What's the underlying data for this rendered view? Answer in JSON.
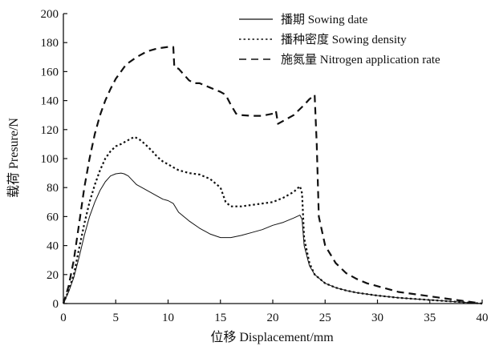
{
  "chart_data": {
    "type": "line",
    "xlabel": "位移 Displacement/mm",
    "ylabel": "载荷 Presure/N",
    "xlim": [
      0,
      40
    ],
    "ylim": [
      0,
      200
    ],
    "x_ticks": [
      0,
      5,
      10,
      15,
      20,
      25,
      30,
      35,
      40
    ],
    "y_ticks": [
      0,
      20,
      40,
      60,
      80,
      100,
      120,
      140,
      160,
      180,
      200
    ],
    "grid": false,
    "legend_position": "top-right",
    "series": [
      {
        "name": "播期 Sowing date",
        "line_style": "solid",
        "stroke_width": 1,
        "color": "#111111",
        "x": [
          0,
          0.5,
          1,
          1.5,
          2,
          2.5,
          3,
          3.5,
          4,
          4.5,
          5,
          5.5,
          5.8,
          6.2,
          6.6,
          7,
          7.5,
          8,
          8.5,
          9,
          9.5,
          10,
          10.5,
          11,
          11.5,
          12,
          13,
          14,
          15,
          16,
          17,
          18,
          19,
          20,
          21,
          22,
          22.6,
          22.8,
          23,
          23.5,
          24,
          25,
          26,
          27,
          28,
          29,
          30,
          32,
          34,
          36,
          38,
          40
        ],
        "values": [
          0,
          8,
          18,
          32,
          47,
          60,
          70,
          78,
          84,
          88,
          89.5,
          90,
          89.5,
          88,
          85,
          82,
          80,
          78,
          76,
          74,
          72,
          71,
          69,
          63,
          60,
          57,
          52,
          48,
          45.5,
          45.5,
          47,
          49,
          51,
          54,
          56,
          59,
          61,
          58,
          40,
          26,
          20,
          14,
          11,
          9,
          7.5,
          6.5,
          5.5,
          4,
          3,
          2,
          1,
          0
        ]
      },
      {
        "name": "播种密度 Sowing density",
        "line_style": "dotted",
        "stroke_width": 2.2,
        "color": "#111111",
        "x": [
          0,
          0.5,
          1,
          1.5,
          2,
          2.5,
          3,
          3.5,
          4,
          4.5,
          5,
          5.5,
          6,
          6.5,
          6.8,
          7.3,
          7.8,
          8.5,
          9,
          9.5,
          10,
          10.5,
          11,
          12,
          13,
          14,
          15,
          15.5,
          16,
          17,
          18,
          19,
          20,
          21,
          22,
          22.6,
          22.8,
          23,
          23.5,
          24,
          25,
          26,
          27,
          28,
          29,
          30,
          32,
          34,
          36,
          38,
          40
        ],
        "values": [
          0,
          9,
          20,
          38,
          55,
          70,
          82,
          92,
          100,
          105,
          108.5,
          110,
          112,
          114,
          115,
          113,
          110,
          105,
          101,
          98,
          96,
          94,
          92,
          90,
          89,
          86,
          80,
          70,
          67,
          67,
          68,
          69,
          70,
          73,
          77,
          81,
          76,
          45,
          28,
          20,
          14,
          11,
          9,
          7.5,
          6.5,
          5.5,
          4,
          3,
          2,
          1,
          0
        ]
      },
      {
        "name": "施氮量 Nitrogen application rate",
        "line_style": "dashed",
        "stroke_width": 2.2,
        "color": "#111111",
        "x": [
          0,
          0.5,
          1,
          1.5,
          2,
          2.5,
          3,
          3.5,
          4,
          4.5,
          5,
          5.5,
          6,
          7,
          8,
          9,
          10,
          10.5,
          10.6,
          11,
          11.5,
          12,
          12.5,
          13,
          14,
          15,
          15.5,
          16,
          16.5,
          17,
          18,
          19,
          20,
          20.3,
          20.5,
          21,
          22,
          23,
          23.5,
          24,
          24.2,
          24.4,
          25,
          26,
          27,
          28,
          29,
          30,
          32,
          34,
          36,
          38,
          40
        ],
        "values": [
          0,
          12,
          30,
          55,
          80,
          100,
          117,
          130,
          140,
          148,
          155,
          160,
          165,
          170,
          174,
          176,
          177,
          177,
          163,
          162,
          158,
          154,
          152,
          152,
          149,
          146,
          144,
          137,
          131,
          130,
          129.5,
          129.5,
          131,
          133,
          124,
          126,
          130,
          137,
          141,
          144,
          110,
          60,
          40,
          28,
          21,
          17,
          14,
          12,
          8,
          6,
          4,
          2,
          0
        ]
      }
    ]
  }
}
